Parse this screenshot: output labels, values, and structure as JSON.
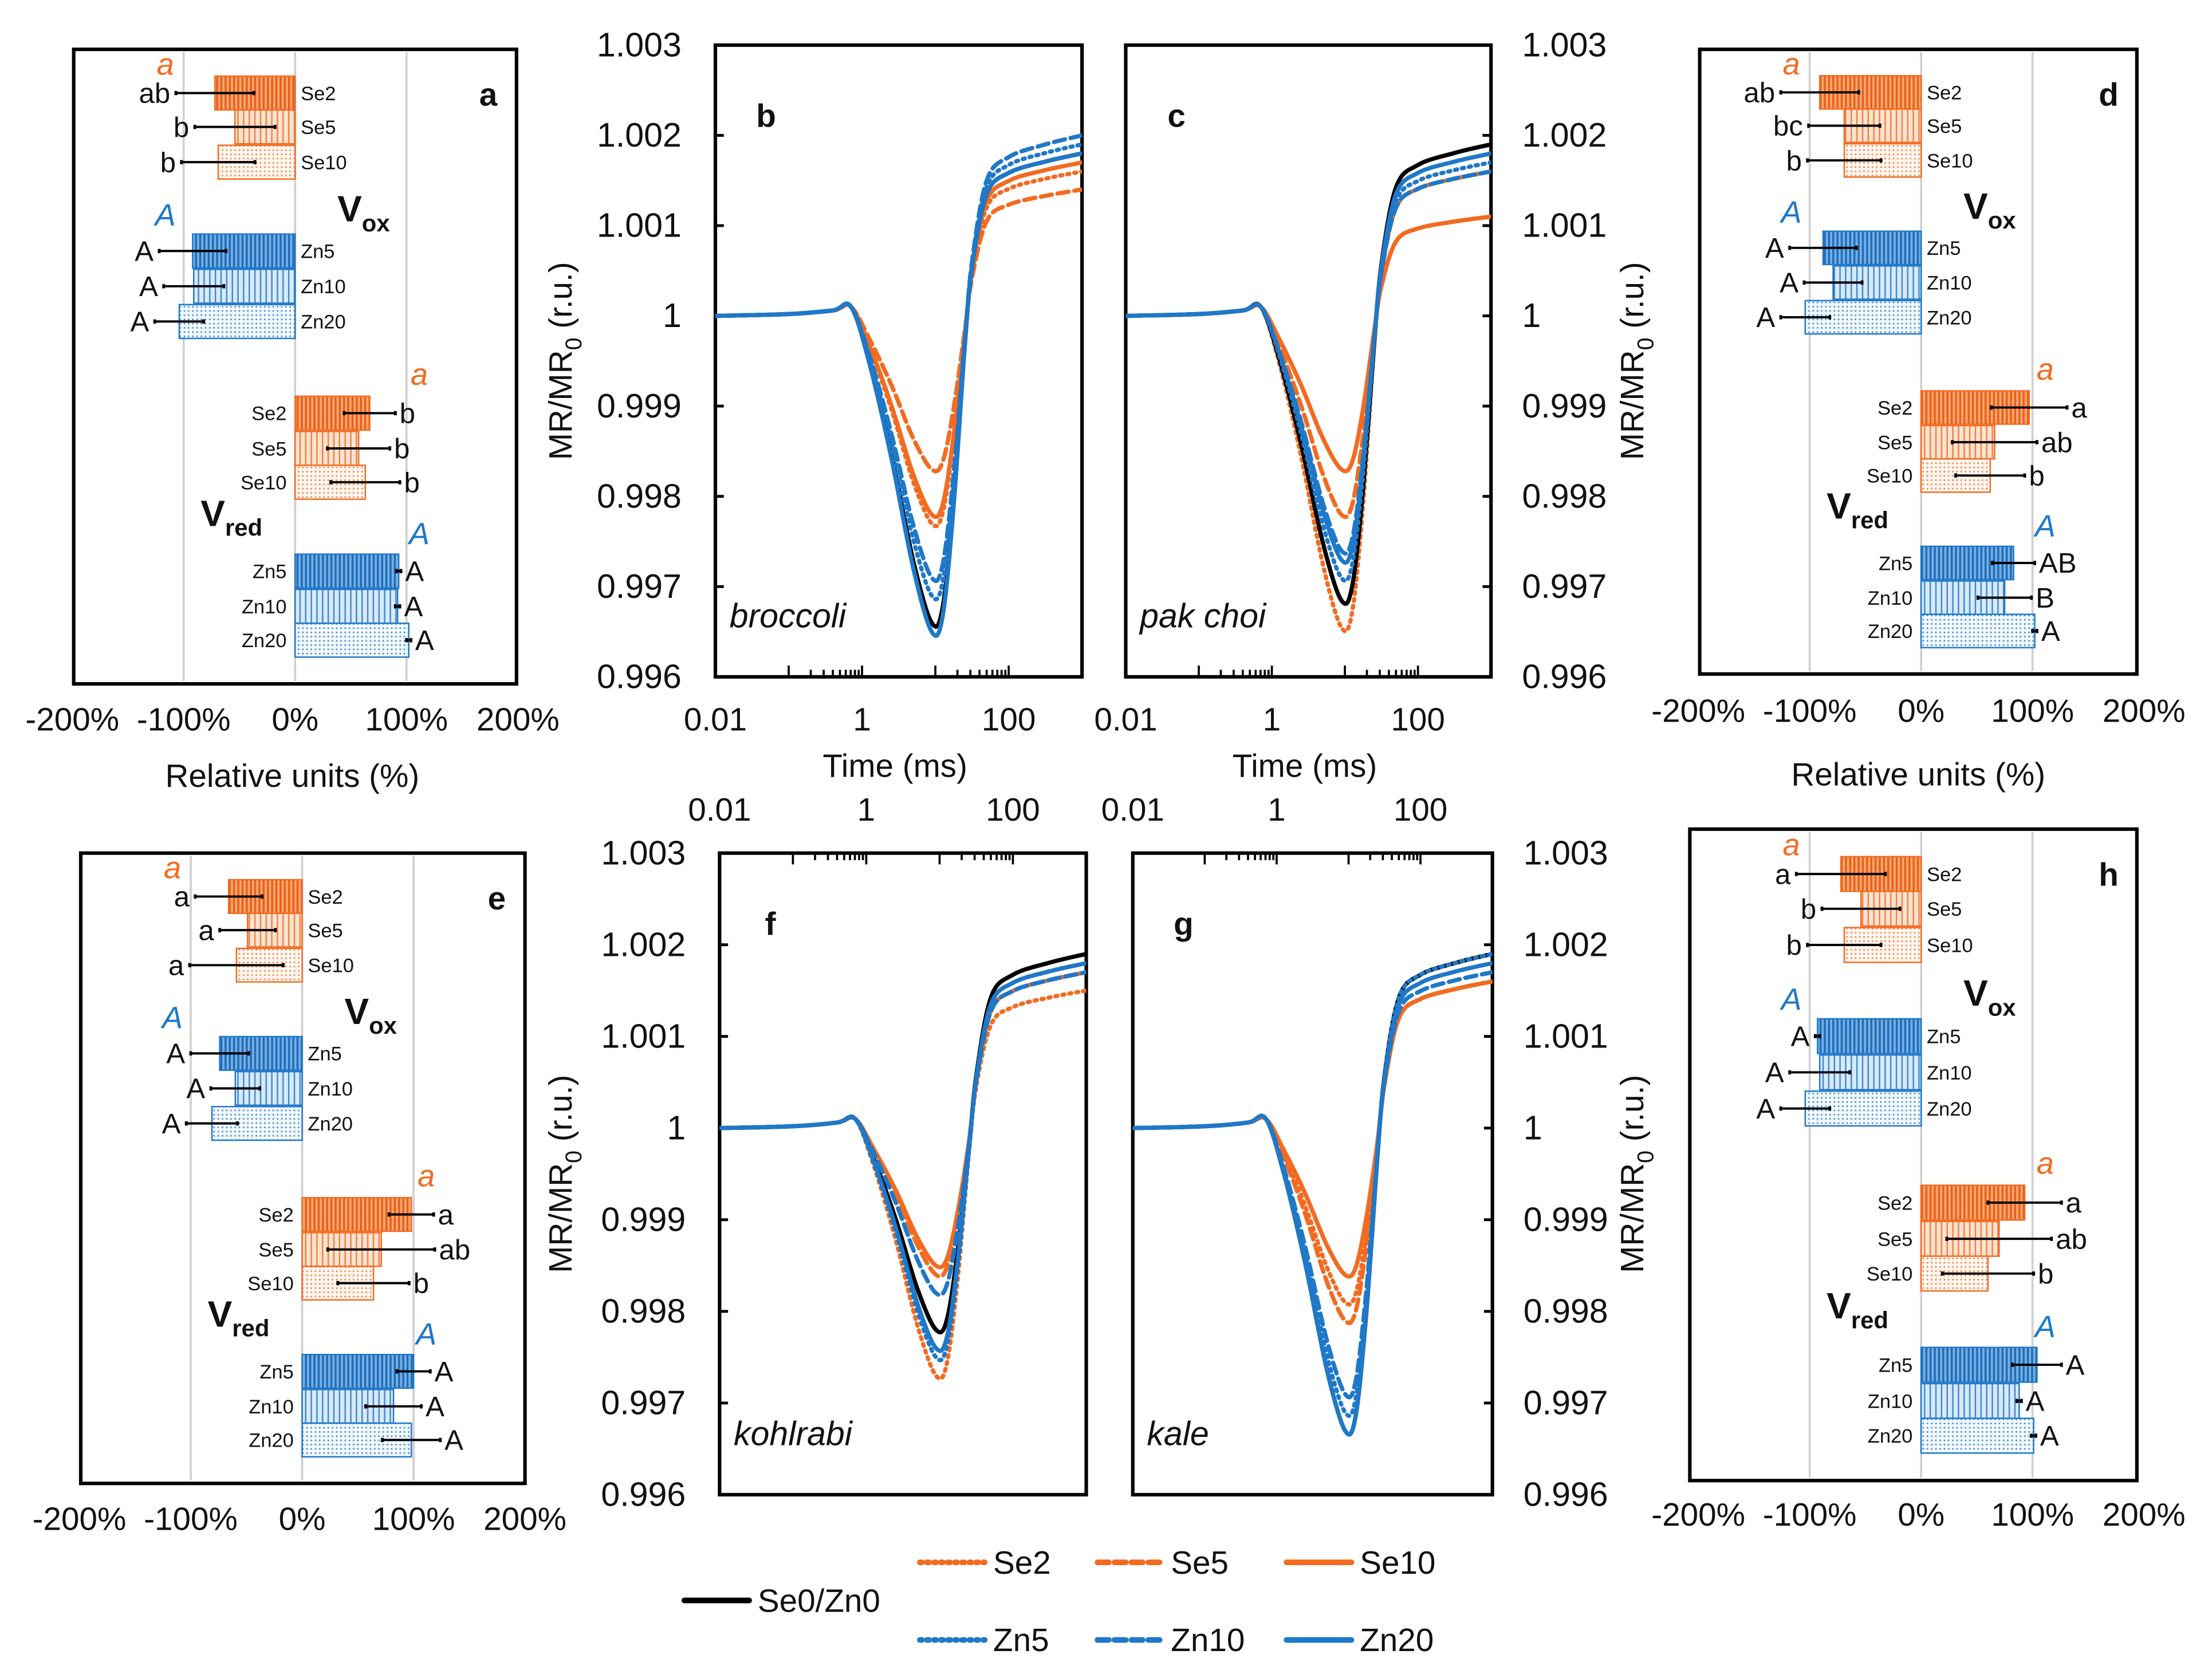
{
  "colors": {
    "se": "#F26B21",
    "zn": "#1F78C8",
    "control": "#000000",
    "grid": "#D0D0D0"
  },
  "legend": {
    "items": [
      {
        "label": "Se2",
        "group": "se",
        "style": "dotted"
      },
      {
        "label": "Se5",
        "group": "se",
        "style": "dashed"
      },
      {
        "label": "Se10",
        "group": "se",
        "style": "solid"
      },
      {
        "label": "Se0/Zn0",
        "group": "control",
        "style": "solid"
      },
      {
        "label": "Zn5",
        "group": "zn",
        "style": "dotted"
      },
      {
        "label": "Zn10",
        "group": "zn",
        "style": "dashed"
      },
      {
        "label": "Zn20",
        "group": "zn",
        "style": "solid"
      }
    ]
  },
  "chart_data": [
    {
      "type": "bar",
      "panel": "a",
      "orientation": "horizontal",
      "xlabel": "Relative units (%)",
      "xlim": [
        -200,
        200
      ],
      "xticks": [
        "-200%",
        "-100%",
        "0%",
        "100%",
        "200%"
      ],
      "grid": true,
      "groups": [
        {
          "title": "V",
          "subscript": "ox",
          "se_letter": "a",
          "zn_letter": "A",
          "bars": [
            {
              "name": "Se2",
              "value": -72,
              "error": 35,
              "letter": "ab"
            },
            {
              "name": "Se5",
              "value": -54,
              "error": 36,
              "letter": "b"
            },
            {
              "name": "Se10",
              "value": -69,
              "error": 33,
              "letter": "b"
            },
            {
              "name": "Zn5",
              "value": -92,
              "error": 30,
              "letter": "A"
            },
            {
              "name": "Zn10",
              "value": -91,
              "error": 27,
              "letter": "A"
            },
            {
              "name": "Zn20",
              "value": -104,
              "error": 22,
              "letter": "A"
            }
          ]
        },
        {
          "title": "V",
          "subscript": "red",
          "se_letter": "a",
          "zn_letter": "A",
          "bars": [
            {
              "name": "Se2",
              "value": 67,
              "error": 23,
              "letter": "b"
            },
            {
              "name": "Se5",
              "value": 57,
              "error": 28,
              "letter": "b"
            },
            {
              "name": "Se10",
              "value": 63,
              "error": 31,
              "letter": "b"
            },
            {
              "name": "Zn5",
              "value": 93,
              "error": 2,
              "letter": "A"
            },
            {
              "name": "Zn10",
              "value": 92,
              "error": 2,
              "letter": "A"
            },
            {
              "name": "Zn20",
              "value": 102,
              "error": 2,
              "letter": "A"
            }
          ]
        }
      ]
    },
    {
      "type": "bar",
      "panel": "d",
      "orientation": "horizontal",
      "xlabel": "Relative units (%)",
      "xlim": [
        -200,
        200
      ],
      "xticks": [
        "-200%",
        "-100%",
        "0%",
        "100%",
        "200%"
      ],
      "grid": true,
      "groups": [
        {
          "title": "V",
          "subscript": "ox",
          "se_letter": "a",
          "zn_letter": "A",
          "bars": [
            {
              "name": "Se2",
              "value": -91,
              "error": 35,
              "letter": "ab"
            },
            {
              "name": "Se5",
              "value": -69,
              "error": 32,
              "letter": "bc"
            },
            {
              "name": "Se10",
              "value": -69,
              "error": 33,
              "letter": "b"
            },
            {
              "name": "Zn5",
              "value": -88,
              "error": 30,
              "letter": "A"
            },
            {
              "name": "Zn10",
              "value": -79,
              "error": 26,
              "letter": "A"
            },
            {
              "name": "Zn20",
              "value": -104,
              "error": 22,
              "letter": "A"
            }
          ]
        },
        {
          "title": "V",
          "subscript": "red",
          "se_letter": "a",
          "zn_letter": "A",
          "bars": [
            {
              "name": "Se2",
              "value": 97,
              "error": 34,
              "letter": "a"
            },
            {
              "name": "Se5",
              "value": 66,
              "error": 38,
              "letter": "ab"
            },
            {
              "name": "Se10",
              "value": 62,
              "error": 31,
              "letter": "b"
            },
            {
              "name": "Zn5",
              "value": 83,
              "error": 19,
              "letter": "AB"
            },
            {
              "name": "Zn10",
              "value": 75,
              "error": 24,
              "letter": "B"
            },
            {
              "name": "Zn20",
              "value": 102,
              "error": 2,
              "letter": "A"
            }
          ]
        }
      ]
    },
    {
      "type": "bar",
      "panel": "e",
      "orientation": "horizontal",
      "xlabel": "",
      "xlim": [
        -200,
        200
      ],
      "xticks": [
        "-200%",
        "-100%",
        "0%",
        "100%",
        "200%"
      ],
      "grid": true,
      "groups": [
        {
          "title": "V",
          "subscript": "ox",
          "se_letter": "a",
          "zn_letter": "A",
          "bars": [
            {
              "name": "Se2",
              "value": -66,
              "error": 30,
              "letter": "a"
            },
            {
              "name": "Se5",
              "value": -49,
              "error": 25,
              "letter": "a"
            },
            {
              "name": "Se10",
              "value": -59,
              "error": 42,
              "letter": "a"
            },
            {
              "name": "Zn5",
              "value": -74,
              "error": 26,
              "letter": "A"
            },
            {
              "name": "Zn10",
              "value": -60,
              "error": 22,
              "letter": "A"
            },
            {
              "name": "Zn20",
              "value": -81,
              "error": 23,
              "letter": "A"
            }
          ]
        },
        {
          "title": "V",
          "subscript": "red",
          "se_letter": "a",
          "zn_letter": "A",
          "bars": [
            {
              "name": "Se2",
              "value": 98,
              "error": 20,
              "letter": "a"
            },
            {
              "name": "Se5",
              "value": 71,
              "error": 48,
              "letter": "ab"
            },
            {
              "name": "Se10",
              "value": 64,
              "error": 32,
              "letter": "b"
            },
            {
              "name": "Zn5",
              "value": 100,
              "error": 15,
              "letter": "A"
            },
            {
              "name": "Zn10",
              "value": 82,
              "error": 25,
              "letter": "A"
            },
            {
              "name": "Zn20",
              "value": 98,
              "error": 26,
              "letter": "A"
            }
          ]
        }
      ]
    },
    {
      "type": "bar",
      "panel": "h",
      "orientation": "horizontal",
      "xlabel": "",
      "xlim": [
        -200,
        200
      ],
      "xticks": [
        "-200%",
        "-100%",
        "0%",
        "100%",
        "200%"
      ],
      "grid": true,
      "groups": [
        {
          "title": "V",
          "subscript": "ox",
          "se_letter": "a",
          "zn_letter": "A",
          "bars": [
            {
              "name": "Se2",
              "value": -72,
              "error": 40,
              "letter": "a"
            },
            {
              "name": "Se5",
              "value": -54,
              "error": 35,
              "letter": "b"
            },
            {
              "name": "Se10",
              "value": -69,
              "error": 33,
              "letter": "b"
            },
            {
              "name": "Zn5",
              "value": -93,
              "error": 2,
              "letter": "A"
            },
            {
              "name": "Zn10",
              "value": -91,
              "error": 27,
              "letter": "A"
            },
            {
              "name": "Zn20",
              "value": -104,
              "error": 22,
              "letter": "A"
            }
          ]
        },
        {
          "title": "V",
          "subscript": "red",
          "se_letter": "a",
          "zn_letter": "A",
          "bars": [
            {
              "name": "Se2",
              "value": 93,
              "error": 33,
              "letter": "a"
            },
            {
              "name": "Se5",
              "value": 70,
              "error": 47,
              "letter": "ab"
            },
            {
              "name": "Se10",
              "value": 60,
              "error": 41,
              "letter": "b"
            },
            {
              "name": "Zn5",
              "value": 104,
              "error": 22,
              "letter": "A"
            },
            {
              "name": "Zn10",
              "value": 88,
              "error": 2,
              "letter": "A"
            },
            {
              "name": "Zn20",
              "value": 101,
              "error": 2,
              "letter": "A"
            }
          ]
        }
      ]
    },
    {
      "type": "line",
      "panel": "b",
      "species": "broccoli",
      "xlabel": "Time (ms)",
      "xscale": "log",
      "xlim": [
        0.01,
        1000
      ],
      "xticks": [
        "0.01",
        "1",
        "100"
      ],
      "ylabel_main": "MR/MR",
      "ylabel_sub": "0",
      "ylabel_unit": " (r.u.)",
      "ylim": [
        0.996,
        1.003
      ],
      "yticks": [
        "0.996",
        "0.997",
        "0.998",
        "0.999",
        "1",
        "1.001",
        "1.002",
        "1.003"
      ],
      "series": [
        {
          "name": "Se0/Zn0",
          "min": 0.9966,
          "final": 1.0018
        },
        {
          "name": "Se2",
          "min": 0.9977,
          "final": 1.0016
        },
        {
          "name": "Se5",
          "min": 0.9983,
          "final": 1.0014
        },
        {
          "name": "Se10",
          "min": 0.9978,
          "final": 1.0017
        },
        {
          "name": "Zn5",
          "min": 0.9969,
          "final": 1.0019
        },
        {
          "name": "Zn10",
          "min": 0.9971,
          "final": 1.002
        },
        {
          "name": "Zn20",
          "min": 0.9965,
          "final": 1.0018
        }
      ]
    },
    {
      "type": "line",
      "panel": "c",
      "species": "pak choi",
      "xlabel": "Time (ms)",
      "xscale": "log",
      "xlim": [
        0.01,
        1000
      ],
      "xticks": [
        "0.01",
        "1",
        "100"
      ],
      "ylabel_main": "MR/MR",
      "ylabel_sub": "0",
      "ylabel_unit": " (r.u.)",
      "ylim": [
        0.996,
        1.003
      ],
      "yticks": [
        "0.996",
        "0.997",
        "0.998",
        "0.999",
        "1",
        "1.001",
        "1.002",
        "1.003"
      ],
      "series": [
        {
          "name": "Se0/Zn0",
          "min": 0.99685,
          "final": 1.0019
        },
        {
          "name": "Se2",
          "min": 0.99655,
          "final": 1.0016
        },
        {
          "name": "Se5",
          "min": 0.9978,
          "final": 1.0016
        },
        {
          "name": "Se10",
          "min": 0.9983,
          "final": 1.0011
        },
        {
          "name": "Zn5",
          "min": 0.9971,
          "final": 1.0017
        },
        {
          "name": "Zn10",
          "min": 0.9974,
          "final": 1.0016
        },
        {
          "name": "Zn20",
          "min": 0.9973,
          "final": 1.0018
        }
      ]
    },
    {
      "type": "line",
      "panel": "f",
      "species": "kohlrabi",
      "xlabel": "",
      "xscale": "log",
      "xlim": [
        0.01,
        1000
      ],
      "xticks": [
        "0.01",
        "1",
        "100"
      ],
      "ylabel_main": "MR/MR",
      "ylabel_sub": "0",
      "ylabel_unit": " (r.u.)",
      "ylim": [
        0.996,
        1.003
      ],
      "yticks": [
        "0.996",
        "0.997",
        "0.998",
        "0.999",
        "1",
        "1.001",
        "1.002",
        "1.003"
      ],
      "series": [
        {
          "name": "Se0/Zn0",
          "min": 0.9978,
          "final": 1.0019
        },
        {
          "name": "Se2",
          "min": 0.9973,
          "final": 1.0015
        },
        {
          "name": "Se5",
          "min": 0.9984,
          "final": 1.0017
        },
        {
          "name": "Se10",
          "min": 0.9985,
          "final": 1.0017
        },
        {
          "name": "Zn5",
          "min": 0.9975,
          "final": 1.0018
        },
        {
          "name": "Zn10",
          "min": 0.9982,
          "final": 1.0017
        },
        {
          "name": "Zn20",
          "min": 0.9976,
          "final": 1.0018
        }
      ]
    },
    {
      "type": "line",
      "panel": "g",
      "species": "kale",
      "xlabel": "",
      "xscale": "log",
      "xlim": [
        0.01,
        1000
      ],
      "xticks": [
        "0.01",
        "1",
        "100"
      ],
      "ylabel_main": "MR/MR",
      "ylabel_sub": "0",
      "ylabel_unit": " (r.u.)",
      "ylim": [
        0.996,
        1.003
      ],
      "yticks": [
        "0.996",
        "0.997",
        "0.998",
        "0.999",
        "1",
        "1.001",
        "1.002",
        "1.003"
      ],
      "series": [
        {
          "name": "Se0/Zn0",
          "min": 0.9967,
          "final": 1.0019
        },
        {
          "name": "Se2",
          "min": 0.9981,
          "final": 1.0016
        },
        {
          "name": "Se5",
          "min": 0.9979,
          "final": 1.0016
        },
        {
          "name": "Se10",
          "min": 0.9984,
          "final": 1.0016
        },
        {
          "name": "Zn5",
          "min": 0.9969,
          "final": 1.0019
        },
        {
          "name": "Zn10",
          "min": 0.9971,
          "final": 1.0017
        },
        {
          "name": "Zn20",
          "min": 0.9967,
          "final": 1.0018
        }
      ]
    }
  ]
}
